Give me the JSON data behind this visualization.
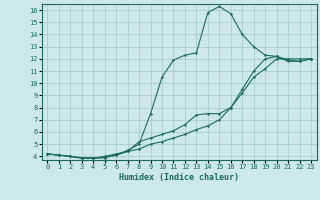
{
  "xlabel": "Humidex (Indice chaleur)",
  "xlim": [
    -0.5,
    23.5
  ],
  "ylim": [
    3.7,
    16.5
  ],
  "xticks": [
    0,
    1,
    2,
    3,
    4,
    5,
    6,
    7,
    8,
    9,
    10,
    11,
    12,
    13,
    14,
    15,
    16,
    17,
    18,
    19,
    20,
    21,
    22,
    23
  ],
  "yticks": [
    4,
    5,
    6,
    7,
    8,
    9,
    10,
    11,
    12,
    13,
    14,
    15,
    16
  ],
  "line_color": "#1a6b5e",
  "bg_color": "#cce8e8",
  "grid_color": "#aacccc",
  "line1_x": [
    0,
    1,
    2,
    3,
    4,
    5,
    6,
    7,
    8,
    9,
    10,
    11,
    12,
    13,
    14,
    15,
    16,
    17,
    18,
    19,
    20,
    21,
    22,
    23
  ],
  "line1_y": [
    4.2,
    4.1,
    4.0,
    3.9,
    3.85,
    4.0,
    4.2,
    4.4,
    4.6,
    5.0,
    5.2,
    5.5,
    5.8,
    6.2,
    6.5,
    7.0,
    8.0,
    9.2,
    10.5,
    11.2,
    12.0,
    12.0,
    12.0,
    12.0
  ],
  "line2_x": [
    0,
    1,
    2,
    3,
    4,
    5,
    6,
    7,
    8,
    9,
    10,
    11,
    12,
    13,
    14,
    15,
    16,
    17,
    18,
    19,
    20,
    21,
    22,
    23
  ],
  "line2_y": [
    4.2,
    4.1,
    4.0,
    3.85,
    3.85,
    3.9,
    4.1,
    4.4,
    5.2,
    5.5,
    5.8,
    6.1,
    6.6,
    7.4,
    7.5,
    7.5,
    8.0,
    9.5,
    11.0,
    12.0,
    12.2,
    11.9,
    11.8,
    12.0
  ],
  "line3_x": [
    0,
    1,
    2,
    3,
    4,
    5,
    6,
    7,
    8,
    9,
    10,
    11,
    12,
    13,
    14,
    15,
    16,
    17,
    18,
    19,
    20,
    21,
    22,
    23
  ],
  "line3_y": [
    4.2,
    4.1,
    4.0,
    3.85,
    3.85,
    3.9,
    4.1,
    4.5,
    5.0,
    7.5,
    10.5,
    11.9,
    12.3,
    12.5,
    15.8,
    16.3,
    15.7,
    14.0,
    13.0,
    12.3,
    12.2,
    11.8,
    11.8,
    12.0
  ]
}
